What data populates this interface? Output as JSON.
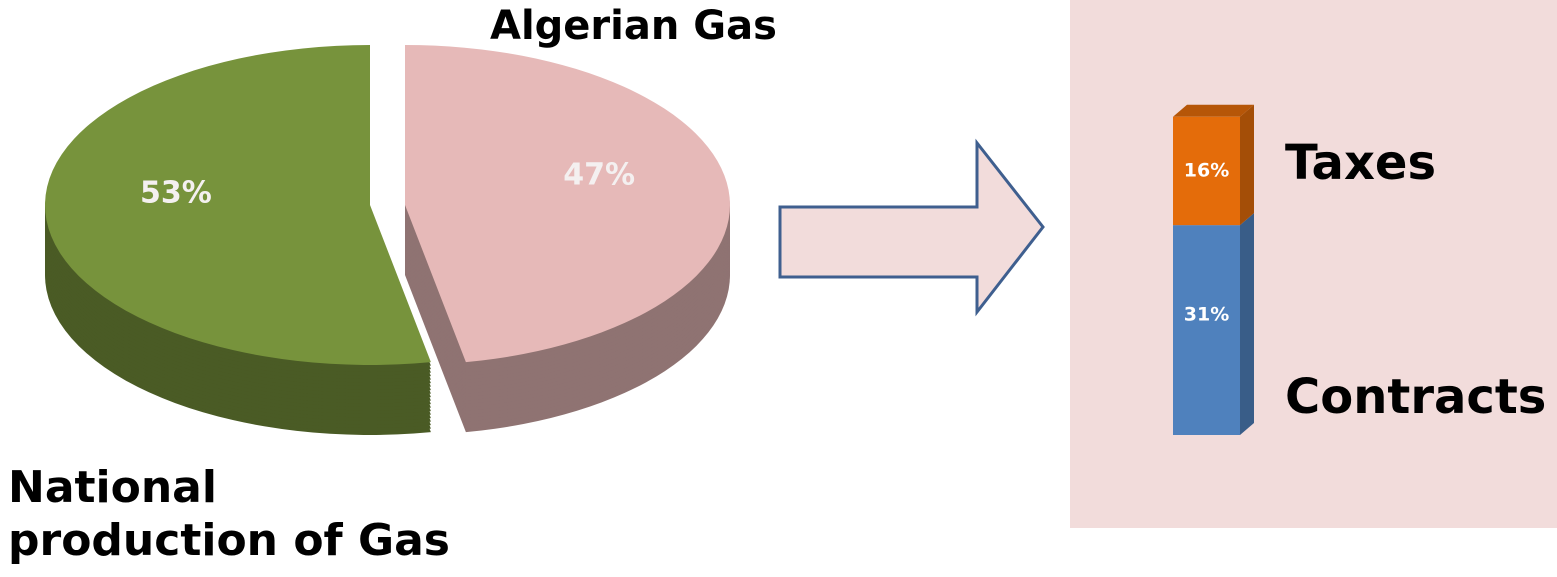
{
  "chart_data": [
    {
      "type": "pie",
      "categories": [
        "National production of Gas",
        "Algerian Gas"
      ],
      "values": [
        53,
        47
      ],
      "value_labels": [
        "53%",
        "47%"
      ],
      "colors": [
        "#77933c",
        "#e6b9b8"
      ]
    },
    {
      "type": "bar",
      "stacked": true,
      "series": [
        {
          "name": "Contracts",
          "color": "#4f81bd",
          "values": [
            31
          ],
          "value_labels": [
            "31%"
          ]
        },
        {
          "name": "Taxes",
          "color": "#e46c0a",
          "values": [
            16
          ],
          "value_labels": [
            "16%"
          ]
        }
      ]
    }
  ]
}
